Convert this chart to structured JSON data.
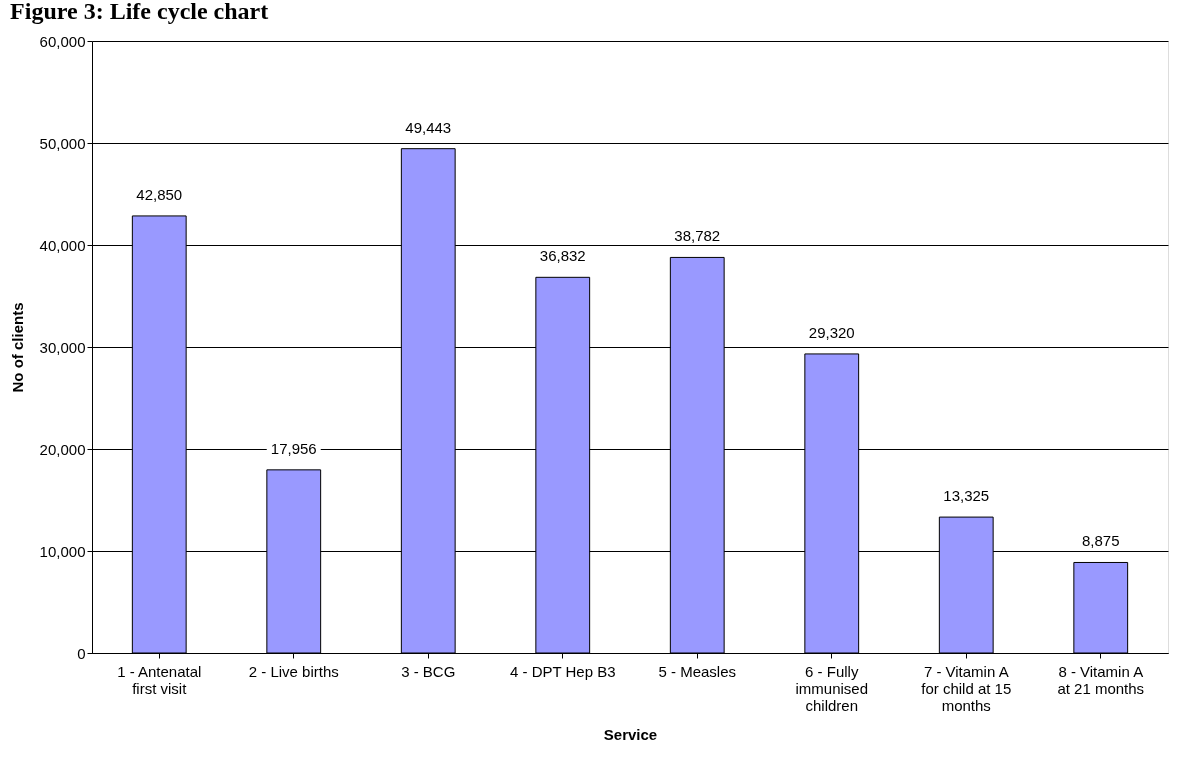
{
  "chart_data": {
    "type": "bar",
    "title": "Figure 3: Life cycle chart",
    "xlabel": "Service",
    "ylabel": "No of clients",
    "categories": [
      "1 - Antenatal first visit",
      "2 - Live births",
      "3 - BCG",
      "4 - DPT Hep B3",
      "5 - Measles",
      "6 - Fully immunised children",
      "7 - Vitamin A for child at 15 months",
      "8 - Vitamin A at 21 months"
    ],
    "values": [
      42850,
      17956,
      49443,
      36832,
      38782,
      29320,
      13325,
      8875
    ],
    "value_labels": [
      "42,850",
      "17,956",
      "49,443",
      "36,832",
      "38,782",
      "29,320",
      "13,325",
      "8,875"
    ],
    "color": "#9999ff",
    "ylim": [
      0,
      60000
    ],
    "yticks": [
      0,
      {
        "value": 10000,
        "label": "10,000"
      },
      {
        "value": 20000,
        "label": "20,000"
      },
      {
        "value": 30000,
        "label": "30,000"
      },
      {
        "value": 40000,
        "label": "40,000"
      },
      {
        "value": 50000,
        "label": "50,000"
      },
      {
        "value": 60000,
        "label": "60,000"
      }
    ],
    "grid": "y"
  }
}
